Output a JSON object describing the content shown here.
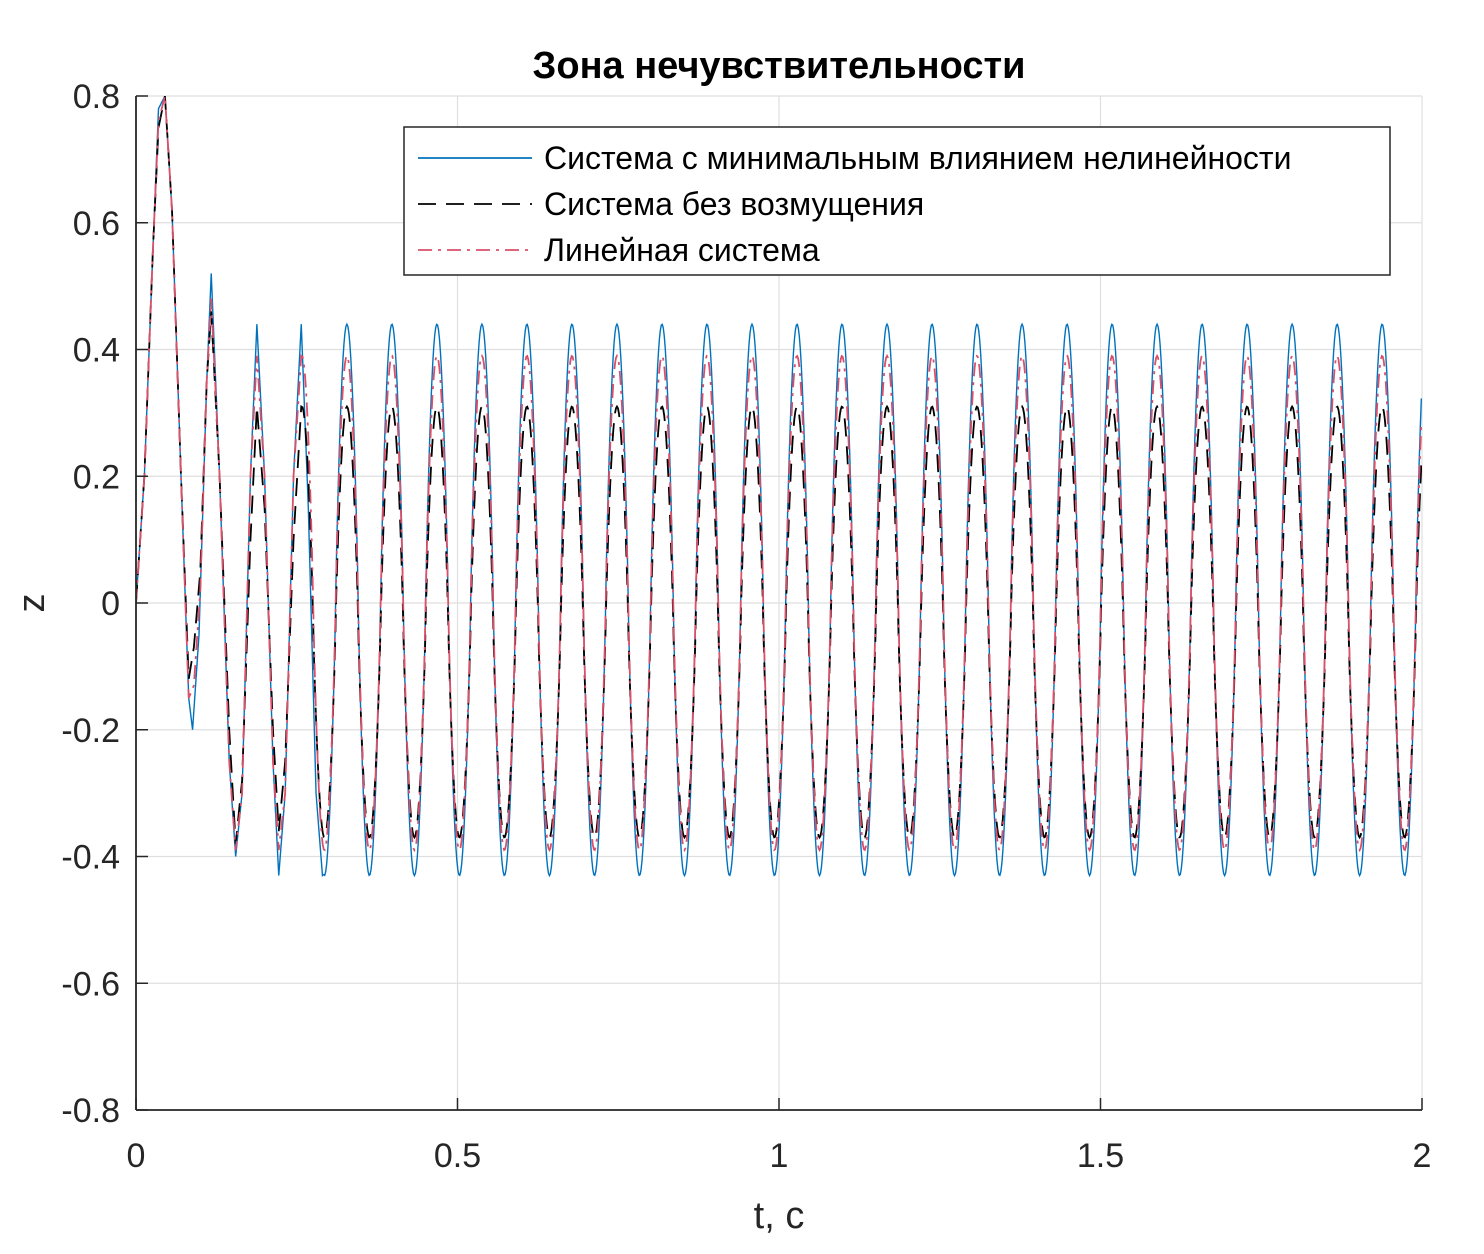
{
  "chart_data": {
    "type": "line",
    "title": "Зона нечувствительности",
    "xlabel": "t, c",
    "ylabel": "z",
    "xlim": [
      0,
      2
    ],
    "ylim": [
      -0.8,
      0.8
    ],
    "xticks": [
      0,
      0.5,
      1,
      1.5,
      2
    ],
    "xtick_labels": [
      "0",
      "0.5",
      "1",
      "1.5",
      "2"
    ],
    "yticks": [
      -0.8,
      -0.6,
      -0.4,
      -0.2,
      0,
      0.2,
      0.4,
      0.6,
      0.8
    ],
    "ytick_labels": [
      "-0.8",
      "-0.6",
      "-0.4",
      "-0.2",
      "0",
      "0.2",
      "0.4",
      "0.6",
      "0.8"
    ],
    "grid": true,
    "legend_position": "top-right",
    "series": [
      {
        "name": "Система с минимальным влиянием нелинейности",
        "color": "#0072BD",
        "style": "solid",
        "points": [
          [
            0,
            0
          ],
          [
            0.013,
            0.2
          ],
          [
            0.026,
            0.55
          ],
          [
            0.035,
            0.78
          ],
          [
            0.045,
            0.8
          ],
          [
            0.056,
            0.62
          ],
          [
            0.07,
            0.2
          ],
          [
            0.082,
            -0.15
          ],
          [
            0.088,
            -0.2
          ],
          [
            0.098,
            -0.05
          ],
          [
            0.11,
            0.35
          ],
          [
            0.117,
            0.52
          ],
          [
            0.13,
            0.2
          ],
          [
            0.145,
            -0.25
          ],
          [
            0.155,
            -0.4
          ],
          [
            0.165,
            -0.3
          ],
          [
            0.178,
            0.2
          ],
          [
            0.188,
            0.44
          ],
          [
            0.2,
            0.2
          ],
          [
            0.213,
            -0.25
          ],
          [
            0.222,
            -0.43
          ],
          [
            0.232,
            -0.3
          ],
          [
            0.245,
            0.2
          ],
          [
            0.257,
            0.44
          ],
          [
            0.268,
            0.15
          ],
          [
            0.28,
            -0.3
          ],
          [
            0.29,
            -0.43
          ]
        ],
        "steady_state": {
          "amplitude_max": 0.44,
          "amplitude_min": -0.43,
          "period": 0.07
        }
      },
      {
        "name": "Система без возмущения",
        "color": "#000000",
        "style": "dashed",
        "points": [
          [
            0,
            0
          ],
          [
            0.013,
            0.2
          ],
          [
            0.026,
            0.55
          ],
          [
            0.035,
            0.75
          ],
          [
            0.045,
            0.8
          ],
          [
            0.056,
            0.62
          ],
          [
            0.07,
            0.2
          ],
          [
            0.082,
            -0.12
          ],
          [
            0.09,
            -0.07
          ],
          [
            0.1,
            0.05
          ],
          [
            0.11,
            0.35
          ],
          [
            0.117,
            0.46
          ],
          [
            0.13,
            0.2
          ],
          [
            0.145,
            -0.2
          ],
          [
            0.155,
            -0.38
          ],
          [
            0.165,
            -0.28
          ],
          [
            0.178,
            0.1
          ],
          [
            0.188,
            0.31
          ],
          [
            0.2,
            0.15
          ],
          [
            0.213,
            -0.2
          ],
          [
            0.222,
            -0.36
          ],
          [
            0.232,
            -0.25
          ],
          [
            0.245,
            0.1
          ],
          [
            0.257,
            0.31
          ]
        ],
        "steady_state": {
          "amplitude_max": 0.31,
          "amplitude_min": -0.37,
          "period": 0.07
        }
      },
      {
        "name": "Линейная система",
        "color": "#D95069",
        "style": "dashdot",
        "points": [
          [
            0,
            0
          ],
          [
            0.013,
            0.2
          ],
          [
            0.026,
            0.55
          ],
          [
            0.035,
            0.76
          ],
          [
            0.045,
            0.8
          ],
          [
            0.056,
            0.62
          ],
          [
            0.07,
            0.2
          ],
          [
            0.082,
            -0.15
          ],
          [
            0.09,
            -0.13
          ],
          [
            0.1,
            0.02
          ],
          [
            0.11,
            0.35
          ],
          [
            0.117,
            0.48
          ],
          [
            0.13,
            0.2
          ],
          [
            0.145,
            -0.25
          ],
          [
            0.155,
            -0.39
          ],
          [
            0.165,
            -0.3
          ],
          [
            0.178,
            0.2
          ],
          [
            0.188,
            0.39
          ],
          [
            0.2,
            0.2
          ],
          [
            0.213,
            -0.25
          ],
          [
            0.222,
            -0.39
          ],
          [
            0.232,
            -0.3
          ],
          [
            0.245,
            0.2
          ],
          [
            0.257,
            0.39
          ]
        ],
        "steady_state": {
          "amplitude_max": 0.39,
          "amplitude_min": -0.39,
          "period": 0.07
        }
      }
    ]
  }
}
